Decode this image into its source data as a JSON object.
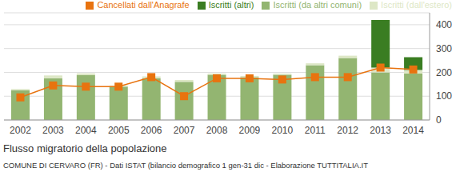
{
  "chart_data": {
    "type": "bar",
    "title": "Flusso migratorio della popolazione",
    "subtitle": "COMUNE DI CERVARO (FR) - Dati ISTAT (bilancio demografico 1 gen-31 dic - Elaborazione TUTTITALIA.IT",
    "categories": [
      "2002",
      "2003",
      "2004",
      "2005",
      "2006",
      "2007",
      "2008",
      "2009",
      "2010",
      "2011",
      "2012",
      "2013",
      "2014"
    ],
    "stacked": true,
    "grid": true,
    "legend": "top",
    "ylim": [
      0,
      450
    ],
    "yticks": [
      0,
      100,
      200,
      300,
      400
    ],
    "series": [
      {
        "name": "Iscritti (da altri comuni)",
        "type": "bar",
        "color": "#93b571",
        "values": [
          125,
          175,
          188,
          140,
          175,
          160,
          190,
          180,
          190,
          230,
          260,
          200,
          195
        ]
      },
      {
        "name": "Iscritti (dall'estero)",
        "type": "bar",
        "color": "#dde7c6",
        "values": [
          5,
          12,
          8,
          5,
          8,
          8,
          5,
          5,
          5,
          8,
          10,
          20,
          15
        ]
      },
      {
        "name": "Iscritti (altri)",
        "type": "bar",
        "color": "#3a7d22",
        "values": [
          0,
          0,
          0,
          0,
          0,
          0,
          0,
          0,
          0,
          0,
          0,
          200,
          54
        ]
      },
      {
        "name": "Cancellati dall'Anagrafe",
        "type": "line",
        "marker": "square",
        "color": "#e8730f",
        "values": [
          95,
          145,
          140,
          140,
          180,
          100,
          175,
          175,
          170,
          180,
          180,
          220,
          212
        ]
      }
    ]
  }
}
